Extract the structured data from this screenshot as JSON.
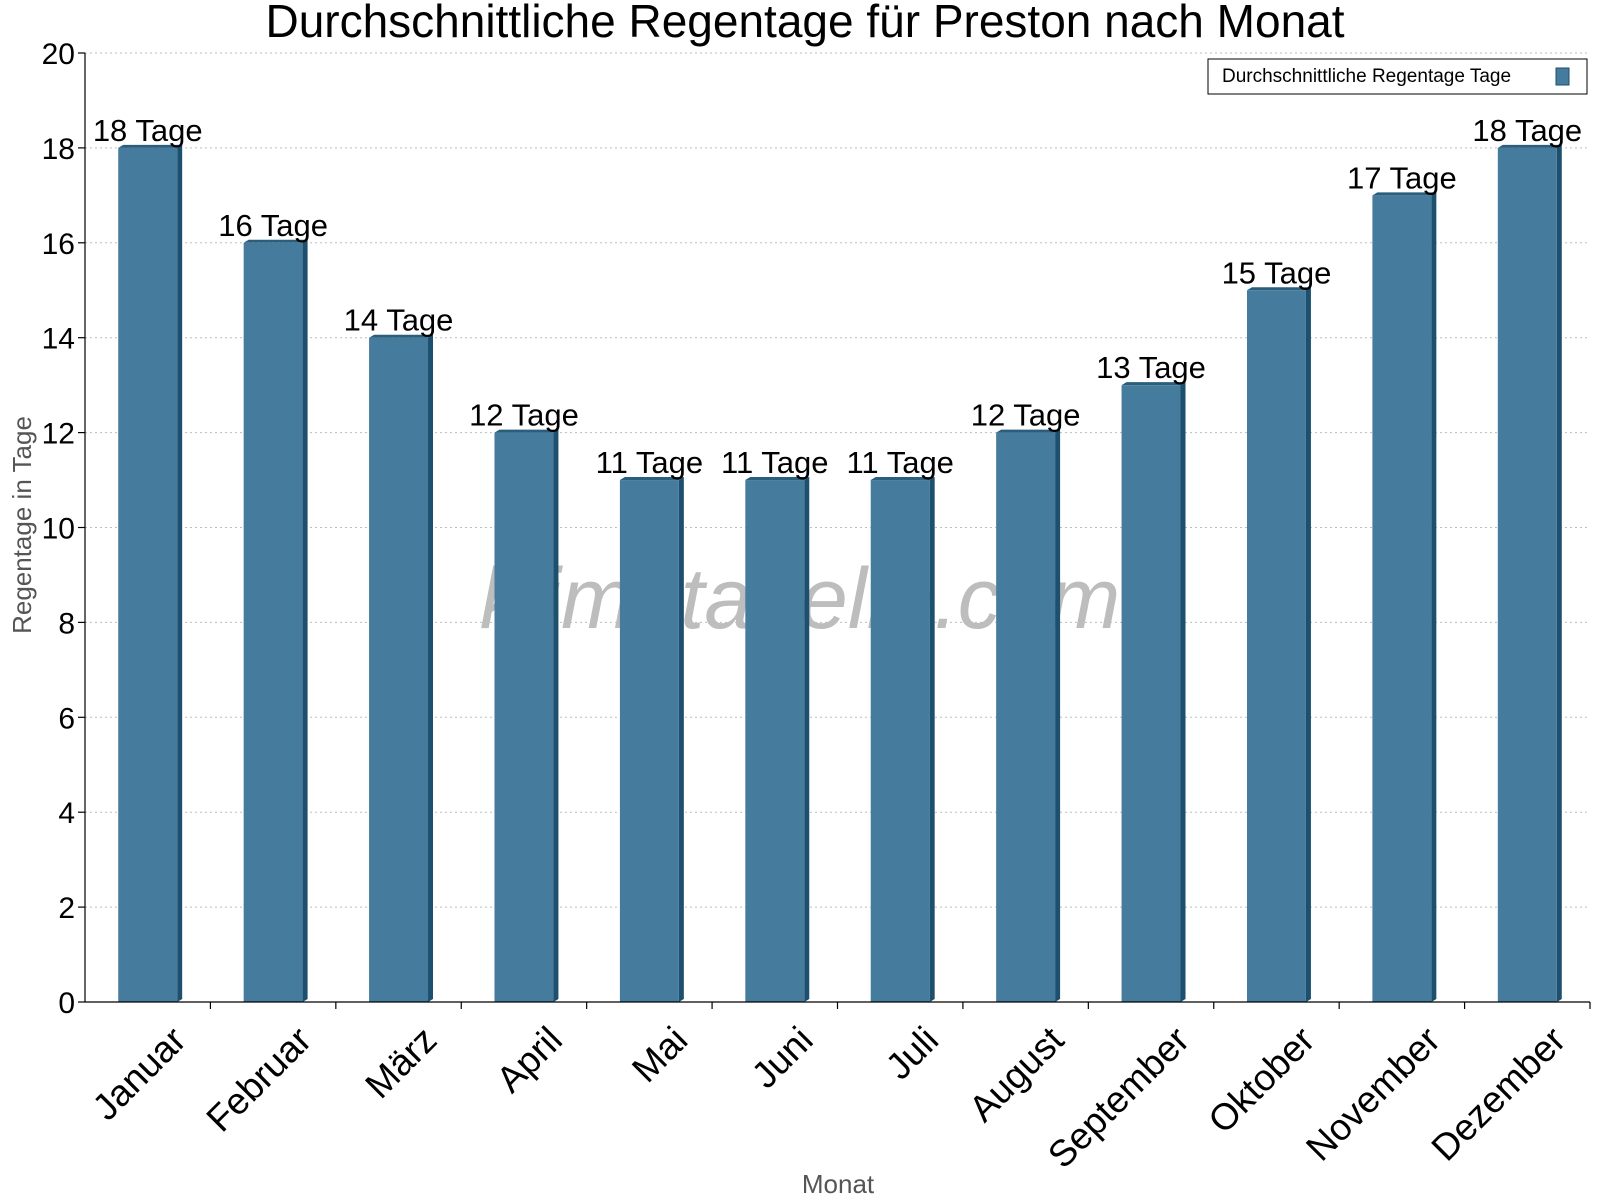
{
  "chart_data": {
    "type": "bar",
    "title": "Durchschnittliche Regentage für Preston nach Monat",
    "xlabel": "Monat",
    "ylabel": "Regentage in Tage",
    "ylim": [
      0,
      20
    ],
    "ytick_step": 2,
    "grid": true,
    "legend_position": "top-right",
    "categories": [
      "Januar",
      "Februar",
      "März",
      "April",
      "Mai",
      "Juni",
      "Juli",
      "August",
      "September",
      "Oktober",
      "November",
      "Dezember"
    ],
    "series": [
      {
        "name": "Durchschnittliche Regentage Tage",
        "values": [
          18,
          16,
          14,
          12,
          11,
          11,
          11,
          12,
          13,
          15,
          17,
          18
        ],
        "color": "#457b9d"
      }
    ],
    "value_suffix": " Tage",
    "watermark": "klimatabelle.com"
  },
  "colors": {
    "bar_front": "#457b9d",
    "bar_side": "#1d4f6e",
    "bar_top": "#2b5d7c"
  }
}
